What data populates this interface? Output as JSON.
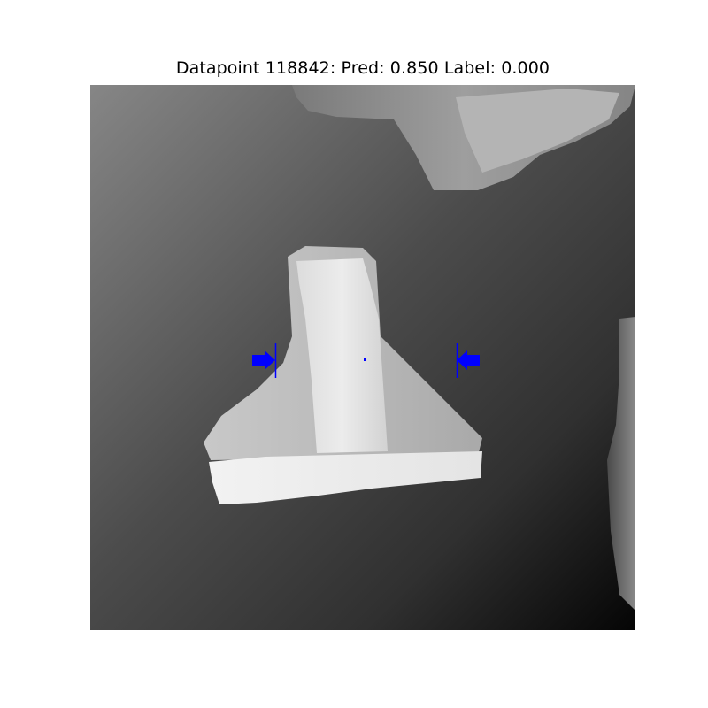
{
  "figure": {
    "title": "Datapoint 118842: Pred: 0.850 Label: 0.000"
  },
  "colors": {
    "grasp_marker": "#0000ff",
    "background": "#ffffff"
  },
  "icons": {
    "left_gripper": "arrow-right-icon",
    "right_gripper": "arrow-left-icon",
    "center": "dot-icon"
  }
}
